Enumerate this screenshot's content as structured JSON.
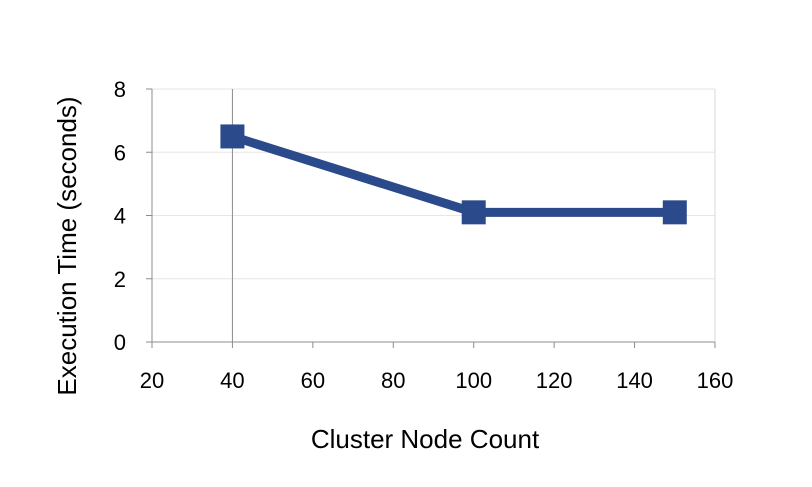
{
  "chart_data": {
    "type": "line",
    "xlabel": "Cluster Node Count",
    "ylabel": "Execution Time (seconds)",
    "xlim": [
      20,
      160
    ],
    "ylim": [
      0,
      8
    ],
    "xticks": [
      20,
      40,
      60,
      80,
      100,
      120,
      140,
      160
    ],
    "yticks": [
      0,
      2,
      4,
      6,
      8
    ],
    "grid": true,
    "series": [
      {
        "color": "#2b4a8b",
        "marker": "square",
        "points": [
          {
            "x": 40,
            "y": 6.5
          },
          {
            "x": 100,
            "y": 4.1
          },
          {
            "x": 150,
            "y": 4.1
          }
        ]
      }
    ]
  }
}
